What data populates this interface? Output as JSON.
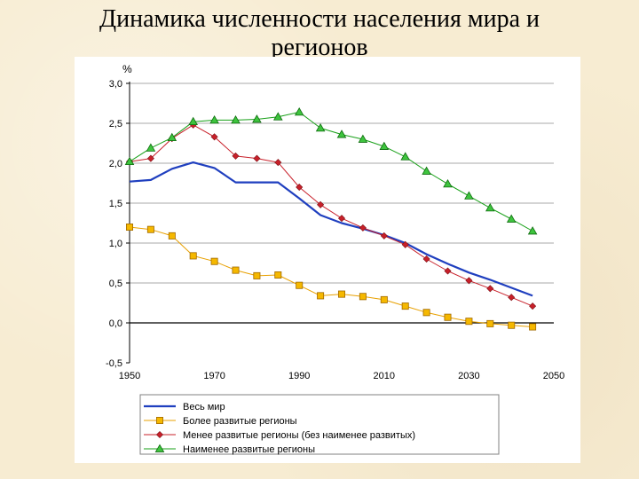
{
  "slide": {
    "title_line1": "Динамика численности населения мира и",
    "title_line2": "регионов"
  },
  "chart_data": {
    "type": "line",
    "title": "Динамика численности населения мира и регионов",
    "ylabel": "%",
    "xlabel": "",
    "ylim": [
      -0.5,
      3.0
    ],
    "xlim": [
      1950,
      2050
    ],
    "y_ticks": [
      3.0,
      2.5,
      2.0,
      1.5,
      1.0,
      0.5,
      0.0,
      -0.5
    ],
    "y_tick_labels": [
      "3,0",
      "2,5",
      "2,0",
      "1,5",
      "1,0",
      "0,5",
      "0,0",
      "-0,5"
    ],
    "x_ticks": [
      1950,
      1970,
      1990,
      2010,
      2030,
      2050
    ],
    "x_tick_labels": [
      "1950",
      "1970",
      "1990",
      "2010",
      "2030",
      "2050"
    ],
    "grid": "horizontal",
    "legend_position": "bottom",
    "series": [
      {
        "name": "Весь мир",
        "color": "#1f3fbf",
        "marker": "none",
        "x": [
          1950,
          1955,
          1960,
          1965,
          1970,
          1975,
          1980,
          1985,
          1990,
          1995,
          2000,
          2005,
          2010,
          2015,
          2020,
          2025,
          2030,
          2035,
          2040,
          2045
        ],
        "values": [
          1.77,
          1.79,
          1.93,
          2.01,
          1.94,
          1.76,
          1.76,
          1.76,
          1.56,
          1.35,
          1.25,
          1.18,
          1.1,
          1.0,
          0.86,
          0.74,
          0.63,
          0.54,
          0.44,
          0.34
        ]
      },
      {
        "name": "Более развитые регионы",
        "color": "#e8a000",
        "marker": "square",
        "x": [
          1950,
          1955,
          1960,
          1965,
          1970,
          1975,
          1980,
          1985,
          1990,
          1995,
          2000,
          2005,
          2010,
          2015,
          2020,
          2025,
          2030,
          2035,
          2040,
          2045
        ],
        "values": [
          1.2,
          1.17,
          1.09,
          0.84,
          0.77,
          0.66,
          0.59,
          0.6,
          0.47,
          0.34,
          0.36,
          0.33,
          0.29,
          0.21,
          0.13,
          0.07,
          0.02,
          -0.01,
          -0.03,
          -0.05
        ]
      },
      {
        "name": "Менее развитые регионы (без наименее развитых)",
        "color": "#c8202a",
        "marker": "diamond",
        "x": [
          1950,
          1955,
          1960,
          1965,
          1970,
          1975,
          1980,
          1985,
          1990,
          1995,
          2000,
          2005,
          2010,
          2015,
          2020,
          2025,
          2030,
          2035,
          2040,
          2045
        ],
        "values": [
          2.02,
          2.06,
          2.31,
          2.48,
          2.33,
          2.09,
          2.06,
          2.01,
          1.7,
          1.48,
          1.31,
          1.19,
          1.09,
          0.98,
          0.8,
          0.65,
          0.53,
          0.43,
          0.32,
          0.21
        ]
      },
      {
        "name": "Наименее развитые регионы",
        "color": "#18a018",
        "marker": "triangle",
        "x": [
          1950,
          1955,
          1960,
          1965,
          1970,
          1975,
          1980,
          1985,
          1990,
          1995,
          2000,
          2005,
          2010,
          2015,
          2020,
          2025,
          2030,
          2035,
          2040,
          2045
        ],
        "values": [
          2.02,
          2.19,
          2.32,
          2.52,
          2.54,
          2.54,
          2.55,
          2.58,
          2.64,
          2.44,
          2.36,
          2.3,
          2.21,
          2.08,
          1.9,
          1.74,
          1.59,
          1.44,
          1.3,
          1.15
        ]
      }
    ]
  }
}
